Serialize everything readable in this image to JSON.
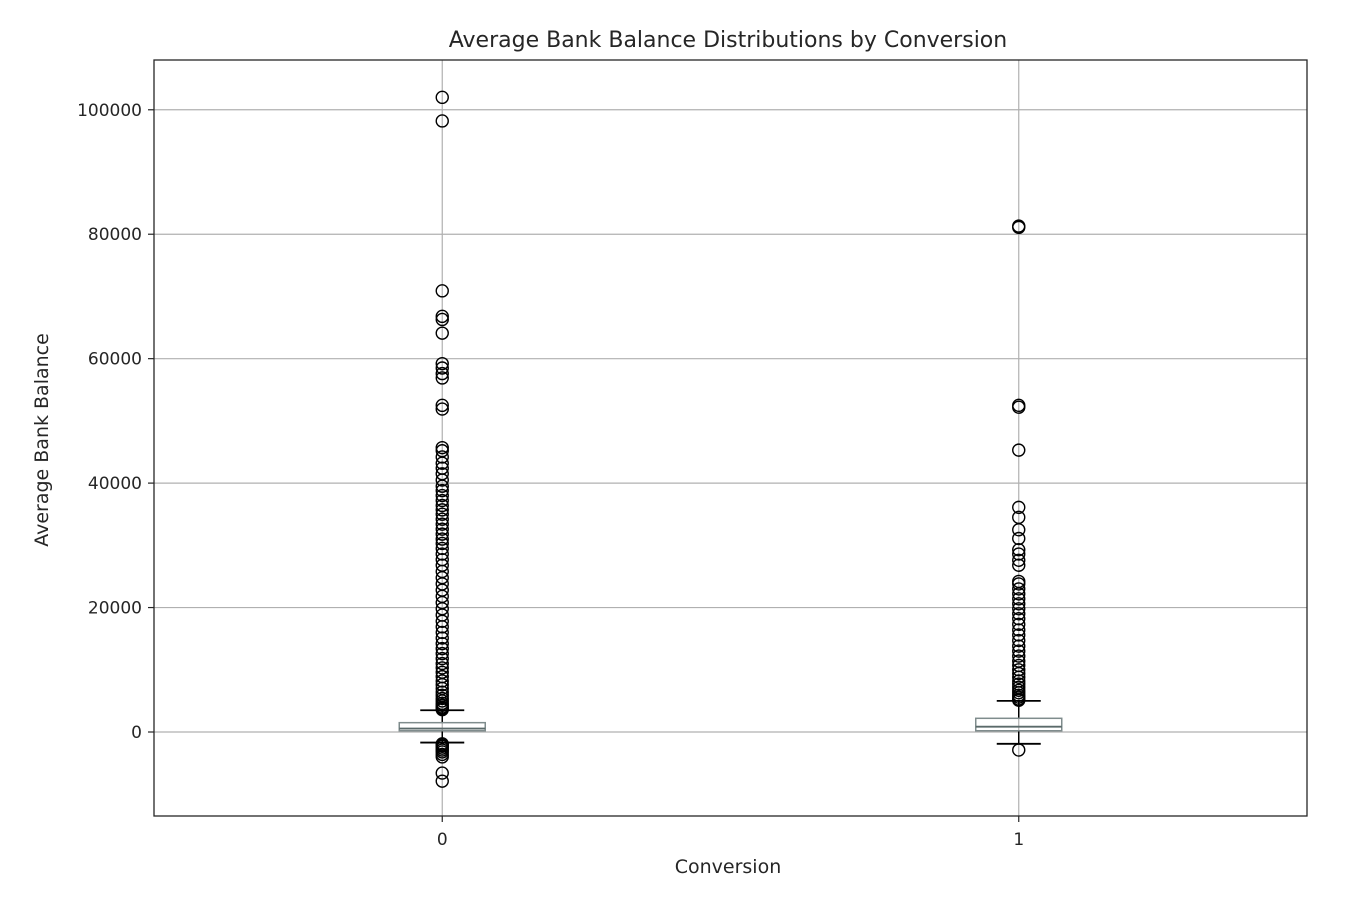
{
  "chart_data": {
    "type": "box",
    "title": "Average Bank Balance Distributions by Conversion",
    "xlabel": "Conversion",
    "ylabel": "Average Bank Balance",
    "categories": [
      "0",
      "1"
    ],
    "ylim": [
      -13500,
      108000
    ],
    "yticks": [
      0,
      20000,
      40000,
      60000,
      80000,
      100000
    ],
    "grid": true,
    "boxes": [
      {
        "category": "0",
        "whisker_low": -1700,
        "q1": 200,
        "median": 550,
        "q3": 1500,
        "whisker_high": 3500,
        "outliers_high": [
          3600,
          3800,
          4000,
          4300,
          4600,
          5000,
          5400,
          5900,
          6400,
          7000,
          7600,
          8200,
          8900,
          9600,
          10300,
          11000,
          11800,
          12600,
          13400,
          14200,
          15100,
          16000,
          16900,
          17800,
          18800,
          19800,
          20800,
          21800,
          22800,
          23800,
          24800,
          25800,
          26800,
          27700,
          28600,
          29500,
          30300,
          31000,
          31800,
          32600,
          33400,
          34200,
          35000,
          35700,
          36400,
          37200,
          38000,
          38800,
          39500,
          40500,
          41500,
          42400,
          43200,
          44200,
          45200,
          45700,
          51900,
          52500,
          56900,
          57600,
          58500,
          59200,
          64100,
          66300,
          66800,
          70900,
          98200,
          102000
        ],
        "outliers_low": [
          -1900,
          -2100,
          -2300,
          -2600,
          -2900,
          -3200,
          -3600,
          -4000,
          -6600,
          -7900
        ]
      },
      {
        "category": "1",
        "whisker_low": -1900,
        "q1": 200,
        "median": 850,
        "q3": 2200,
        "whisker_high": 5000,
        "outliers_high": [
          5100,
          5300,
          5600,
          5900,
          6300,
          6700,
          7200,
          7700,
          8200,
          8800,
          9400,
          10000,
          10700,
          11400,
          12200,
          13000,
          13800,
          14700,
          15600,
          16400,
          17300,
          18200,
          19000,
          19800,
          20600,
          21400,
          22200,
          23000,
          23800,
          24200,
          26800,
          27600,
          28600,
          29300,
          31100,
          32500,
          34500,
          36100,
          45300,
          52200,
          52500,
          81100,
          81300
        ],
        "outliers_low": [
          -2900
        ]
      }
    ]
  }
}
